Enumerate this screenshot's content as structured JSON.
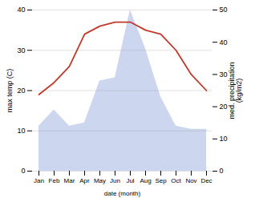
{
  "chart_data": {
    "type": "line",
    "xlabel": "date (month)",
    "ylabel": "max temp (C)",
    "y2label": "med. precipitation\n(kg/m2)",
    "categories": [
      "Jan",
      "Feb",
      "Mar",
      "Apr",
      "May",
      "Jun",
      "Jul",
      "Aug",
      "Sep",
      "Oct",
      "Nov",
      "Dec"
    ],
    "series": [
      {
        "type": "area",
        "axis": "y2",
        "color": "#b8c4e8",
        "values": [
          14,
          19,
          14,
          15,
          28,
          29,
          50,
          38,
          23,
          14,
          13,
          13
        ]
      },
      {
        "type": "line",
        "color": "#c0392b",
        "values": [
          19,
          22,
          26,
          34,
          36,
          37,
          37,
          35,
          34,
          30,
          24,
          20
        ]
      }
    ],
    "ylim": [
      0,
      40
    ],
    "yticks": [
      0,
      10,
      20,
      30,
      40
    ],
    "y2lim": [
      0,
      50
    ],
    "y2ticks": [
      0,
      10,
      20,
      30,
      40,
      50
    ],
    "grid": true
  }
}
